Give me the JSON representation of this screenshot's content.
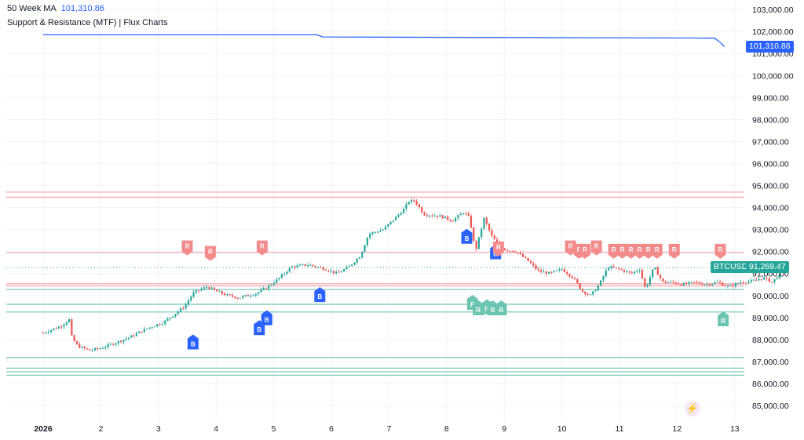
{
  "legend": {
    "ma_name": "50 Week MA",
    "ma_value": "101,310.86",
    "indicator_name": "Support & Resistance (MTF) | Flux Charts"
  },
  "symbol": {
    "ticker": "BTCUSD",
    "price": "91,269.47"
  },
  "ma_price_tag": "101,310.86",
  "colors": {
    "ma": "#2962ff",
    "resistance": "#f7a1a8",
    "support": "#6cc5b0",
    "up": "#26a69a",
    "down": "#ef5350",
    "buy": "#2962ff",
    "res_label": "#f28b8b",
    "sup_label": "#6cc5b0"
  },
  "chart_data": {
    "type": "candlestick",
    "x_tick_labels": [
      "2026",
      "2",
      "3",
      "4",
      "5",
      "6",
      "7",
      "8",
      "9",
      "10",
      "11",
      "12",
      "13"
    ],
    "y_tick_labels": [
      "85,000.00",
      "86,000.00",
      "87,000.00",
      "88,000.00",
      "89,000.00",
      "90,000.00",
      "91,000.00",
      "92,000.00",
      "93,000.00",
      "94,000.00",
      "95,000.00",
      "96,000.00",
      "97,000.00",
      "98,000.00",
      "99,000.00",
      "100,000.00",
      "101,000.00",
      "102,000.00",
      "103,000.00"
    ],
    "ylim": [
      84500,
      103300
    ],
    "price_path": [
      [
        0.0,
        88300
      ],
      [
        0.3,
        88600
      ],
      [
        0.45,
        88900
      ],
      [
        0.5,
        88050
      ],
      [
        0.6,
        87700
      ],
      [
        0.8,
        87500
      ],
      [
        1.0,
        87600
      ],
      [
        1.2,
        87800
      ],
      [
        1.5,
        88100
      ],
      [
        1.8,
        88500
      ],
      [
        2.1,
        88800
      ],
      [
        2.3,
        89200
      ],
      [
        2.45,
        89500
      ],
      [
        2.6,
        90100
      ],
      [
        2.75,
        90300
      ],
      [
        2.85,
        90400
      ],
      [
        3.0,
        90200
      ],
      [
        3.2,
        90000
      ],
      [
        3.4,
        89900
      ],
      [
        3.7,
        90100
      ],
      [
        3.9,
        90400
      ],
      [
        4.1,
        90800
      ],
      [
        4.3,
        91300
      ],
      [
        4.6,
        91400
      ],
      [
        4.9,
        91200
      ],
      [
        5.1,
        91000
      ],
      [
        5.3,
        91300
      ],
      [
        5.5,
        91800
      ],
      [
        5.65,
        92800
      ],
      [
        5.9,
        93000
      ],
      [
        6.1,
        93500
      ],
      [
        6.25,
        93900
      ],
      [
        6.35,
        94300
      ],
      [
        6.45,
        94300
      ],
      [
        6.6,
        93700
      ],
      [
        6.9,
        93600
      ],
      [
        7.1,
        93400
      ],
      [
        7.3,
        93800
      ],
      [
        7.4,
        93500
      ],
      [
        7.5,
        92000
      ],
      [
        7.65,
        93500
      ],
      [
        7.8,
        92600
      ],
      [
        8.0,
        92100
      ],
      [
        8.2,
        92000
      ],
      [
        8.4,
        91600
      ],
      [
        8.6,
        91100
      ],
      [
        8.8,
        91000
      ],
      [
        9.0,
        91200
      ],
      [
        9.2,
        90800
      ],
      [
        9.35,
        90200
      ],
      [
        9.5,
        90000
      ],
      [
        9.65,
        90500
      ],
      [
        9.8,
        91300
      ],
      [
        10.0,
        91200
      ],
      [
        10.2,
        91000
      ],
      [
        10.35,
        91200
      ],
      [
        10.45,
        90300
      ],
      [
        10.6,
        91300
      ],
      [
        10.75,
        90600
      ],
      [
        10.9,
        90600
      ],
      [
        11.1,
        90500
      ],
      [
        11.3,
        90600
      ],
      [
        11.5,
        90500
      ],
      [
        11.7,
        90600
      ],
      [
        11.9,
        90400
      ],
      [
        12.1,
        90600
      ],
      [
        12.3,
        90650
      ],
      [
        12.5,
        90800
      ],
      [
        12.65,
        90600
      ],
      [
        12.75,
        90900
      ],
      [
        12.82,
        91269
      ]
    ],
    "ma_50_week": [
      [
        0.0,
        101850
      ],
      [
        4.75,
        101850
      ],
      [
        4.85,
        101750
      ],
      [
        11.65,
        101700
      ],
      [
        11.75,
        101500
      ],
      [
        11.82,
        101310
      ]
    ],
    "resistance_levels": [
      94700,
      94470,
      91950,
      90530,
      90430
    ],
    "support_levels": [
      90270,
      89600,
      89250,
      87180,
      86700,
      86530,
      86380
    ],
    "buy_signals": [
      [
        2.6,
        88050
      ],
      [
        3.75,
        88700
      ],
      [
        3.88,
        89150
      ],
      [
        4.8,
        90200
      ],
      [
        7.35,
        92850
      ],
      [
        7.85,
        92150
      ]
    ],
    "resistance_signals": [
      [
        2.5,
        92000
      ],
      [
        2.9,
        91750
      ],
      [
        3.8,
        92000
      ],
      [
        7.9,
        91950
      ],
      [
        9.15,
        92000
      ],
      [
        9.3,
        91850
      ],
      [
        9.4,
        91850
      ],
      [
        9.6,
        92000
      ],
      [
        9.9,
        91850
      ],
      [
        10.05,
        91850
      ],
      [
        10.2,
        91850
      ],
      [
        10.35,
        91850
      ],
      [
        10.5,
        91850
      ],
      [
        10.65,
        91850
      ],
      [
        10.95,
        91850
      ],
      [
        11.75,
        91850
      ]
    ],
    "support_signals": [
      [
        7.45,
        89850
      ],
      [
        7.55,
        89600
      ],
      [
        7.7,
        89650
      ],
      [
        7.8,
        89600
      ],
      [
        7.95,
        89600
      ],
      [
        11.8,
        89100
      ]
    ]
  }
}
